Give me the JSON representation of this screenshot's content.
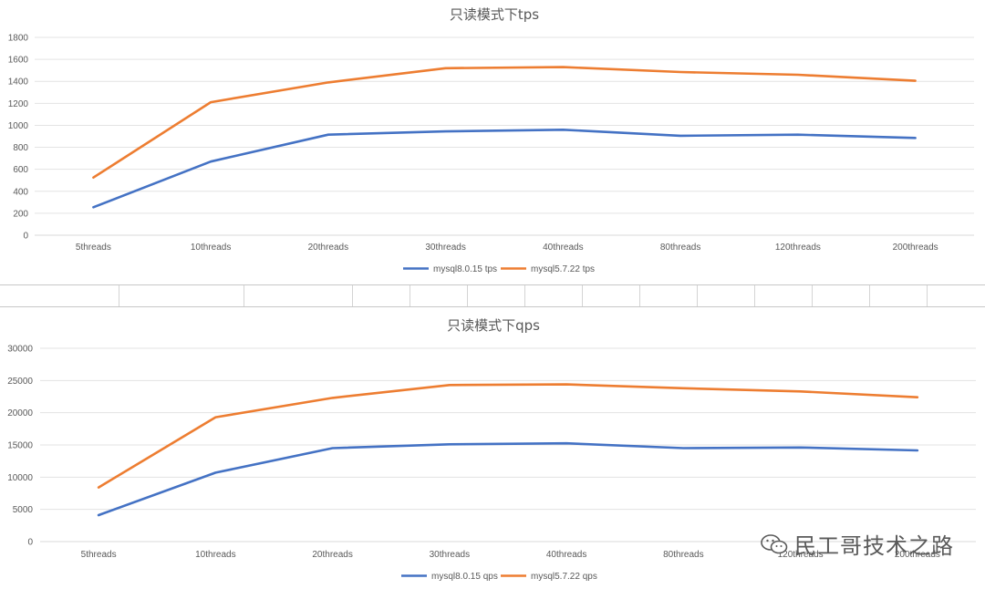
{
  "charts": [
    {
      "id": "tps",
      "type": "line",
      "title": "只读模式下tps",
      "categories": [
        "5threads",
        "10threads",
        "20threads",
        "30threads",
        "40threads",
        "80threads",
        "120threads",
        "200threads"
      ],
      "yticks": [
        0,
        200,
        400,
        600,
        800,
        1000,
        1200,
        1400,
        1600,
        1800
      ],
      "ylim": [
        0,
        1800
      ],
      "grid": true,
      "legend_position": "bottom",
      "series": [
        {
          "name": "mysql8.0.15 tps",
          "color": "#4472C4",
          "values": [
            255,
            670,
            915,
            945,
            960,
            905,
            915,
            885
          ]
        },
        {
          "name": "mysql5.7.22 tps",
          "color": "#ED7D31",
          "values": [
            525,
            1210,
            1390,
            1520,
            1530,
            1485,
            1460,
            1405
          ]
        }
      ]
    },
    {
      "id": "qps",
      "type": "line",
      "title": "只读模式下qps",
      "categories": [
        "5threads",
        "10threads",
        "20threads",
        "30threads",
        "40threads",
        "80threads",
        "120threads",
        "200threads"
      ],
      "yticks": [
        0,
        5000,
        10000,
        15000,
        20000,
        25000,
        30000
      ],
      "ylim": [
        0,
        30000
      ],
      "grid": true,
      "legend_position": "bottom",
      "series": [
        {
          "name": "mysql8.0.15 qps",
          "color": "#4472C4",
          "values": [
            4100,
            10700,
            14500,
            15100,
            15250,
            14500,
            14600,
            14150
          ]
        },
        {
          "name": "mysql5.7.22 qps",
          "color": "#ED7D31",
          "values": [
            8400,
            19300,
            22300,
            24300,
            24400,
            23800,
            23300,
            22400
          ]
        }
      ]
    }
  ],
  "watermark": {
    "text": "民工哥技术之路",
    "icon": "wechat-icon"
  }
}
